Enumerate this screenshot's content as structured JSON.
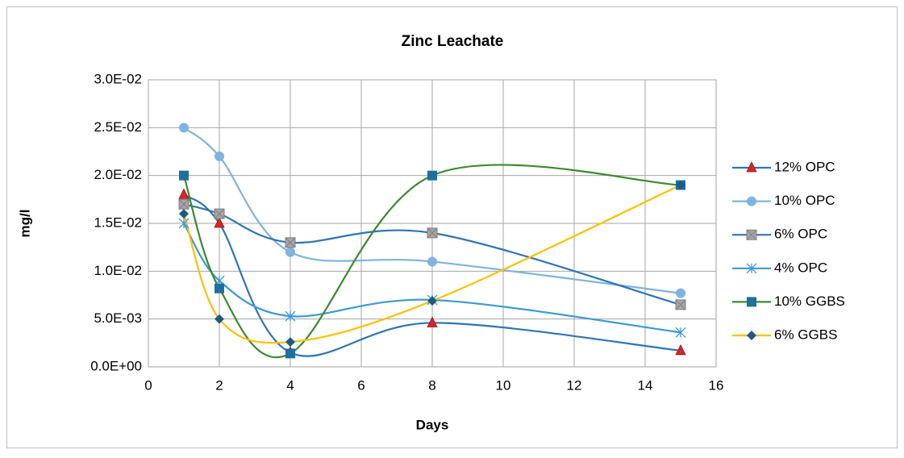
{
  "chart_data": {
    "type": "line",
    "title": "Zinc Leachate",
    "x_label": "Days",
    "y_label": "mg/l",
    "xlim": [
      0,
      16
    ],
    "xticks": [
      0,
      2,
      4,
      6,
      8,
      10,
      12,
      14,
      16
    ],
    "ylim": [
      0,
      0.03
    ],
    "yticks": [
      {
        "value": 0,
        "label": "0.0E+00"
      },
      {
        "value": 0.005,
        "label": "5.0E-03"
      },
      {
        "value": 0.01,
        "label": "1.0E-02"
      },
      {
        "value": 0.015,
        "label": "1.5E-02"
      },
      {
        "value": 0.02,
        "label": "2.0E-02"
      },
      {
        "value": 0.025,
        "label": "2.5E-02"
      },
      {
        "value": 0.03,
        "label": "3.0E-02"
      }
    ],
    "grid": true,
    "smooth": true,
    "legend": "right",
    "x": [
      1,
      2,
      4,
      8,
      15
    ],
    "series": [
      {
        "name": "12% OPC",
        "color": "#2e75b6",
        "marker": "triangle",
        "marker_color": "#e0202a",
        "values": [
          0.018,
          0.015,
          0.0015,
          0.0046,
          0.0017
        ]
      },
      {
        "name": "10% OPC",
        "color": "#7fb3e0",
        "marker": "circle",
        "marker_color": "#7fb3e0",
        "values": [
          0.025,
          0.022,
          0.012,
          0.011,
          0.0077
        ]
      },
      {
        "name": "6% OPC",
        "color": "#2e75b6",
        "marker": "square-x",
        "marker_color": "#a6a6a6",
        "values": [
          0.017,
          0.016,
          0.013,
          0.014,
          0.0065
        ]
      },
      {
        "name": "4% OPC",
        "color": "#3a9ad6",
        "marker": "star",
        "marker_color": "#3a9ad6",
        "values": [
          0.015,
          0.009,
          0.0053,
          0.007,
          0.0036
        ]
      },
      {
        "name": "10% GGBS",
        "color": "#3a8a2c",
        "marker": "square",
        "marker_color": "#1f6f9f",
        "values": [
          0.02,
          0.0082,
          0.0014,
          0.02,
          0.019
        ]
      },
      {
        "name": "6% GGBS",
        "color": "#ffc000",
        "marker": "diamond",
        "marker_color": "#1f5a85",
        "values": [
          0.016,
          0.005,
          0.0026,
          0.0069,
          0.019
        ]
      }
    ]
  }
}
